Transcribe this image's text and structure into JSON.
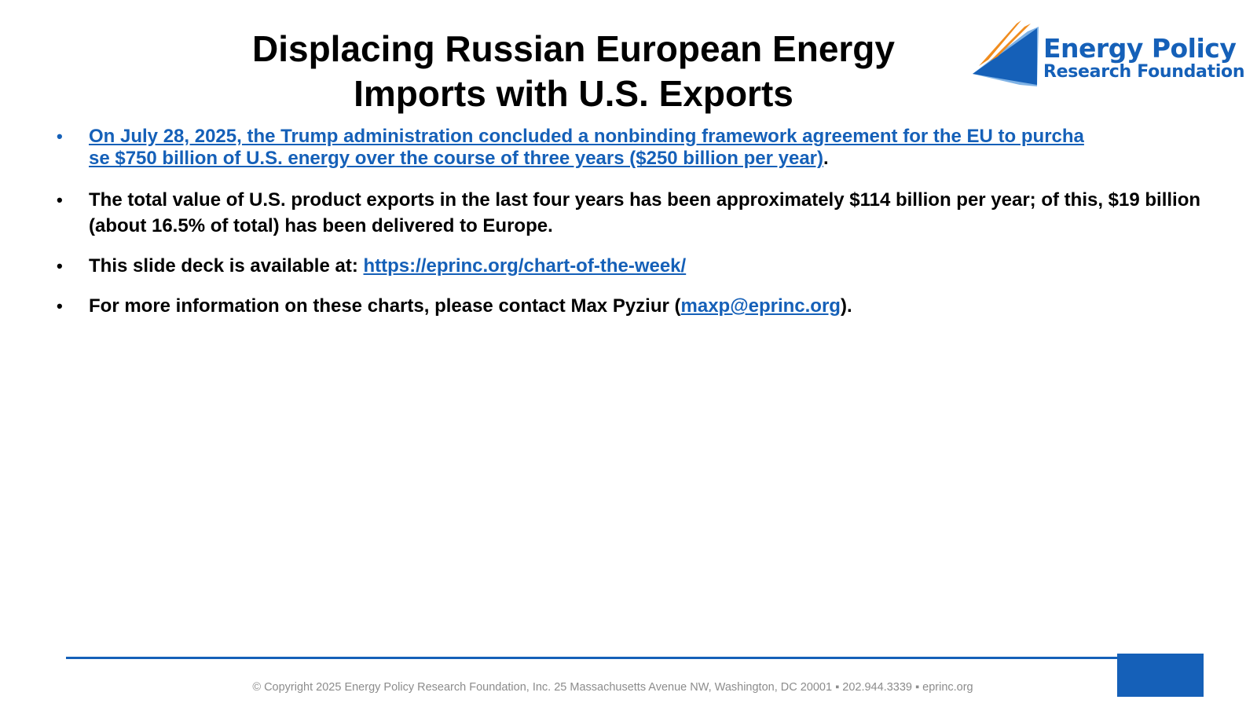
{
  "slide": {
    "title_line1": "Displacing Russian European Energy",
    "title_line2": "Imports with U.S. Exports"
  },
  "logo": {
    "name_line1": "Energy Policy",
    "name_line2": "Research Foundation",
    "colors": {
      "blue": "#1560b8",
      "light_blue": "#7fb2e5",
      "orange": "#f08c1e"
    },
    "icon": "sail-flame-logo-icon"
  },
  "bullets": [
    {
      "link_text_1": "On July 28, 2025, the Trump administration concluded a nonbinding framework agreement for the EU to purcha",
      "link_text_2": "se $750 billion of U.S. energy over the course of three years ($250 billion per year)",
      "suffix": "."
    },
    {
      "text": "The total value of U.S. product exports in the last four years has been approximately $114 billion per year; of this, $19 billion (about 16.5% of total) has been delivered to Europe."
    },
    {
      "prefix": "This slide deck is available at: ",
      "link": "https://eprinc.org/chart-of-the-week/"
    },
    {
      "prefix": "For more information on these charts, please contact Max Pyziur (",
      "link": "maxp@eprinc.org",
      "suffix": ")."
    }
  ],
  "footer": {
    "copyright": "© Copyright 2025 Energy Policy Research Foundation, Inc. 25 Massachusetts Avenue NW, Washington, DC 20001 ▪ 202.944.3339 ▪ eprinc.org"
  },
  "colors": {
    "accent": "#1560b8",
    "footer_text": "#8c8c8c"
  }
}
